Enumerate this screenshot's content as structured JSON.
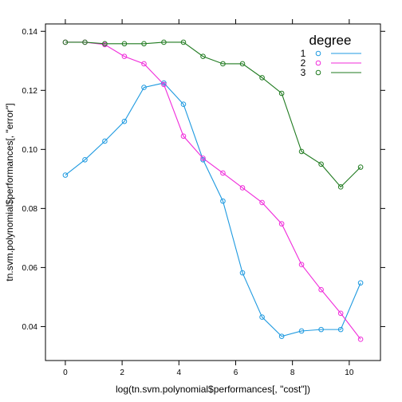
{
  "chart_data": {
    "type": "line",
    "xlabel": "log(tn.svm.polynomial$performances[, \"cost\"])",
    "ylabel": "tn.svm.polynomial$performances[, \"error\"]",
    "xlim": [
      -0.7,
      11.1
    ],
    "ylim": [
      0.0285,
      0.1425
    ],
    "x_ticks": [
      0,
      2,
      4,
      6,
      8,
      10
    ],
    "y_ticks": [
      0.04,
      0.06,
      0.08,
      0.1,
      0.12,
      0.14
    ],
    "y_tick_labels": [
      "0.04",
      "0.06",
      "0.08",
      "0.10",
      "0.12",
      "0.14"
    ],
    "legend": {
      "title": "degree",
      "position": "top-right"
    },
    "series": [
      {
        "name": "1",
        "color": "#1f9ae0",
        "x": [
          0.0,
          0.69,
          1.39,
          2.08,
          2.77,
          3.47,
          4.16,
          4.85,
          5.55,
          6.24,
          6.93,
          7.62,
          8.32,
          9.01,
          9.7,
          10.4
        ],
        "y": [
          0.0913,
          0.0965,
          0.1028,
          0.1095,
          0.121,
          0.1225,
          0.1153,
          0.0965,
          0.0825,
          0.0582,
          0.0432,
          0.0367,
          0.0385,
          0.039,
          0.039,
          0.0548
        ]
      },
      {
        "name": "2",
        "color": "#f02bda",
        "x": [
          0.0,
          0.69,
          1.39,
          2.08,
          2.77,
          3.47,
          4.16,
          4.85,
          5.55,
          6.24,
          6.93,
          7.62,
          8.32,
          9.01,
          9.7,
          10.4
        ],
        "y": [
          0.1363,
          0.1363,
          0.1355,
          0.1315,
          0.129,
          0.122,
          0.1045,
          0.097,
          0.092,
          0.087,
          0.082,
          0.0748,
          0.061,
          0.0525,
          0.0445,
          0.0357
        ]
      },
      {
        "name": "3",
        "color": "#1f7a1f",
        "x": [
          0.0,
          0.69,
          1.39,
          2.08,
          2.77,
          3.47,
          4.16,
          4.85,
          5.55,
          6.24,
          6.93,
          7.62,
          8.32,
          9.01,
          9.7,
          10.4
        ],
        "y": [
          0.1363,
          0.1363,
          0.1358,
          0.1358,
          0.1358,
          0.1363,
          0.1363,
          0.1315,
          0.129,
          0.129,
          0.1243,
          0.119,
          0.0993,
          0.095,
          0.0873,
          0.094
        ]
      }
    ]
  }
}
